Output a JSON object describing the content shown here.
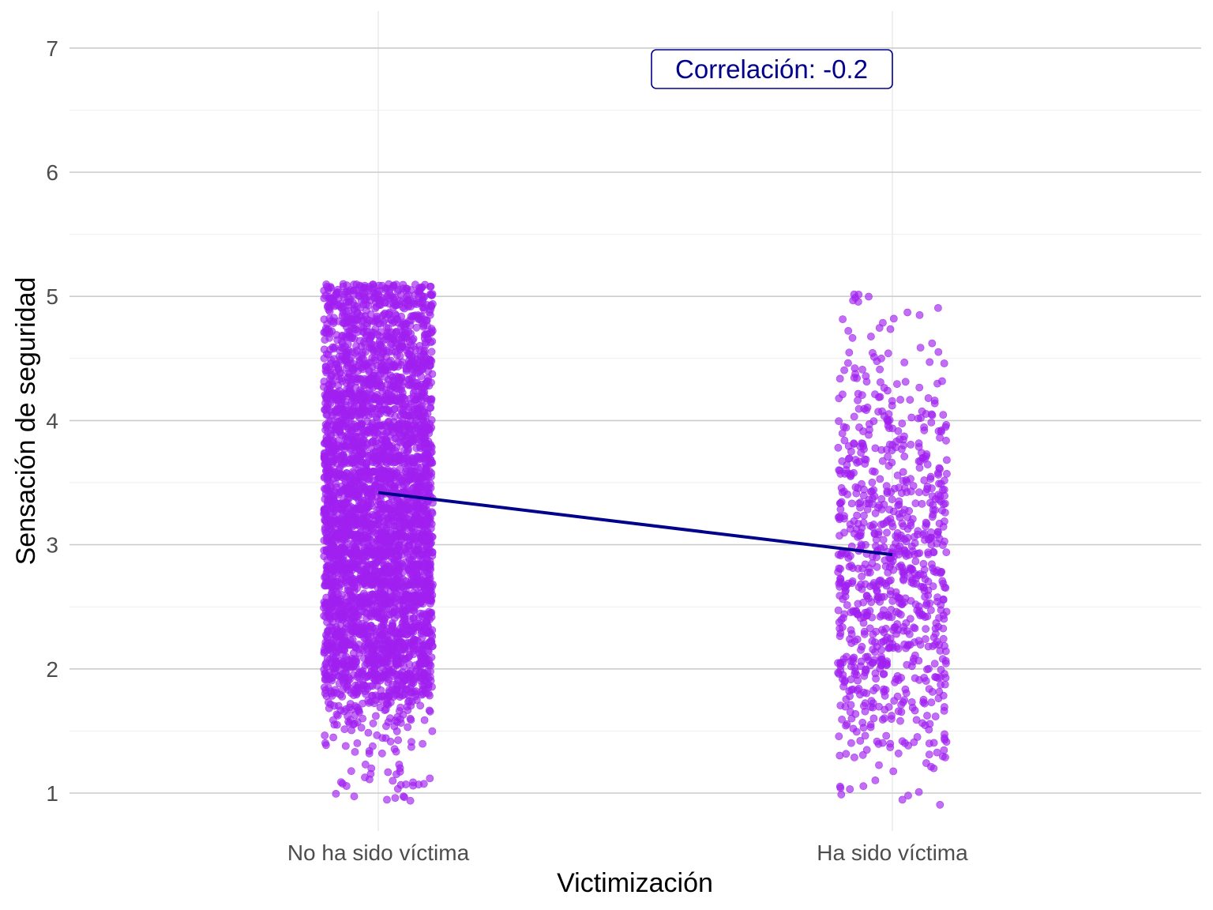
{
  "chart_data": {
    "type": "scatter",
    "subtype": "jitter strip plot with mean line",
    "title": "",
    "xlabel": "Victimización",
    "ylabel": "Sensación de seguridad",
    "categories": [
      "No ha sido víctima",
      "Ha sido víctima"
    ],
    "ylim": [
      0.8,
      7.3
    ],
    "yticks": [
      1,
      2,
      3,
      4,
      5,
      6,
      7
    ],
    "y_tick_labels": [
      "1",
      "2",
      "3",
      "4",
      "5",
      "6",
      "7"
    ],
    "grid": true,
    "legend": "none",
    "point_color": "#A020F0",
    "point_opacity": 0.65,
    "line_color": "#00008B",
    "value_levels": [
      1.0,
      1.125,
      1.25,
      1.375,
      1.5,
      1.625,
      1.75,
      1.875,
      2.0,
      2.125,
      2.25,
      2.375,
      2.5,
      2.625,
      2.75,
      2.875,
      3.0,
      3.125,
      3.25,
      3.375,
      3.5,
      3.625,
      3.75,
      3.875,
      4.0,
      4.125,
      4.25,
      4.375,
      4.5,
      4.625,
      4.75,
      4.875,
      5.0
    ],
    "series": [
      {
        "category": "No ha sido víctima",
        "approx_counts_per_level": [
          14,
          8,
          10,
          14,
          22,
          30,
          60,
          110,
          160,
          140,
          170,
          150,
          180,
          160,
          200,
          170,
          210,
          170,
          200,
          160,
          190,
          150,
          170,
          140,
          160,
          120,
          150,
          110,
          130,
          90,
          110,
          70,
          170
        ],
        "mean": 3.42
      },
      {
        "category": "Ha sido víctima",
        "approx_counts_per_level": [
          8,
          4,
          10,
          14,
          20,
          22,
          32,
          34,
          46,
          36,
          44,
          40,
          50,
          44,
          54,
          40,
          56,
          38,
          44,
          36,
          40,
          28,
          30,
          22,
          26,
          14,
          16,
          8,
          10,
          5,
          6,
          3,
          6
        ],
        "mean": 2.92
      }
    ],
    "mean_line": {
      "from": "No ha sido víctima",
      "to": "Ha sido víctima",
      "y": [
        3.42,
        2.92
      ]
    },
    "annotation": {
      "text": "Correlación: -0.2",
      "x_between": [
        1.55,
        2.0
      ],
      "y": 6.85,
      "color": "#00008B"
    }
  }
}
